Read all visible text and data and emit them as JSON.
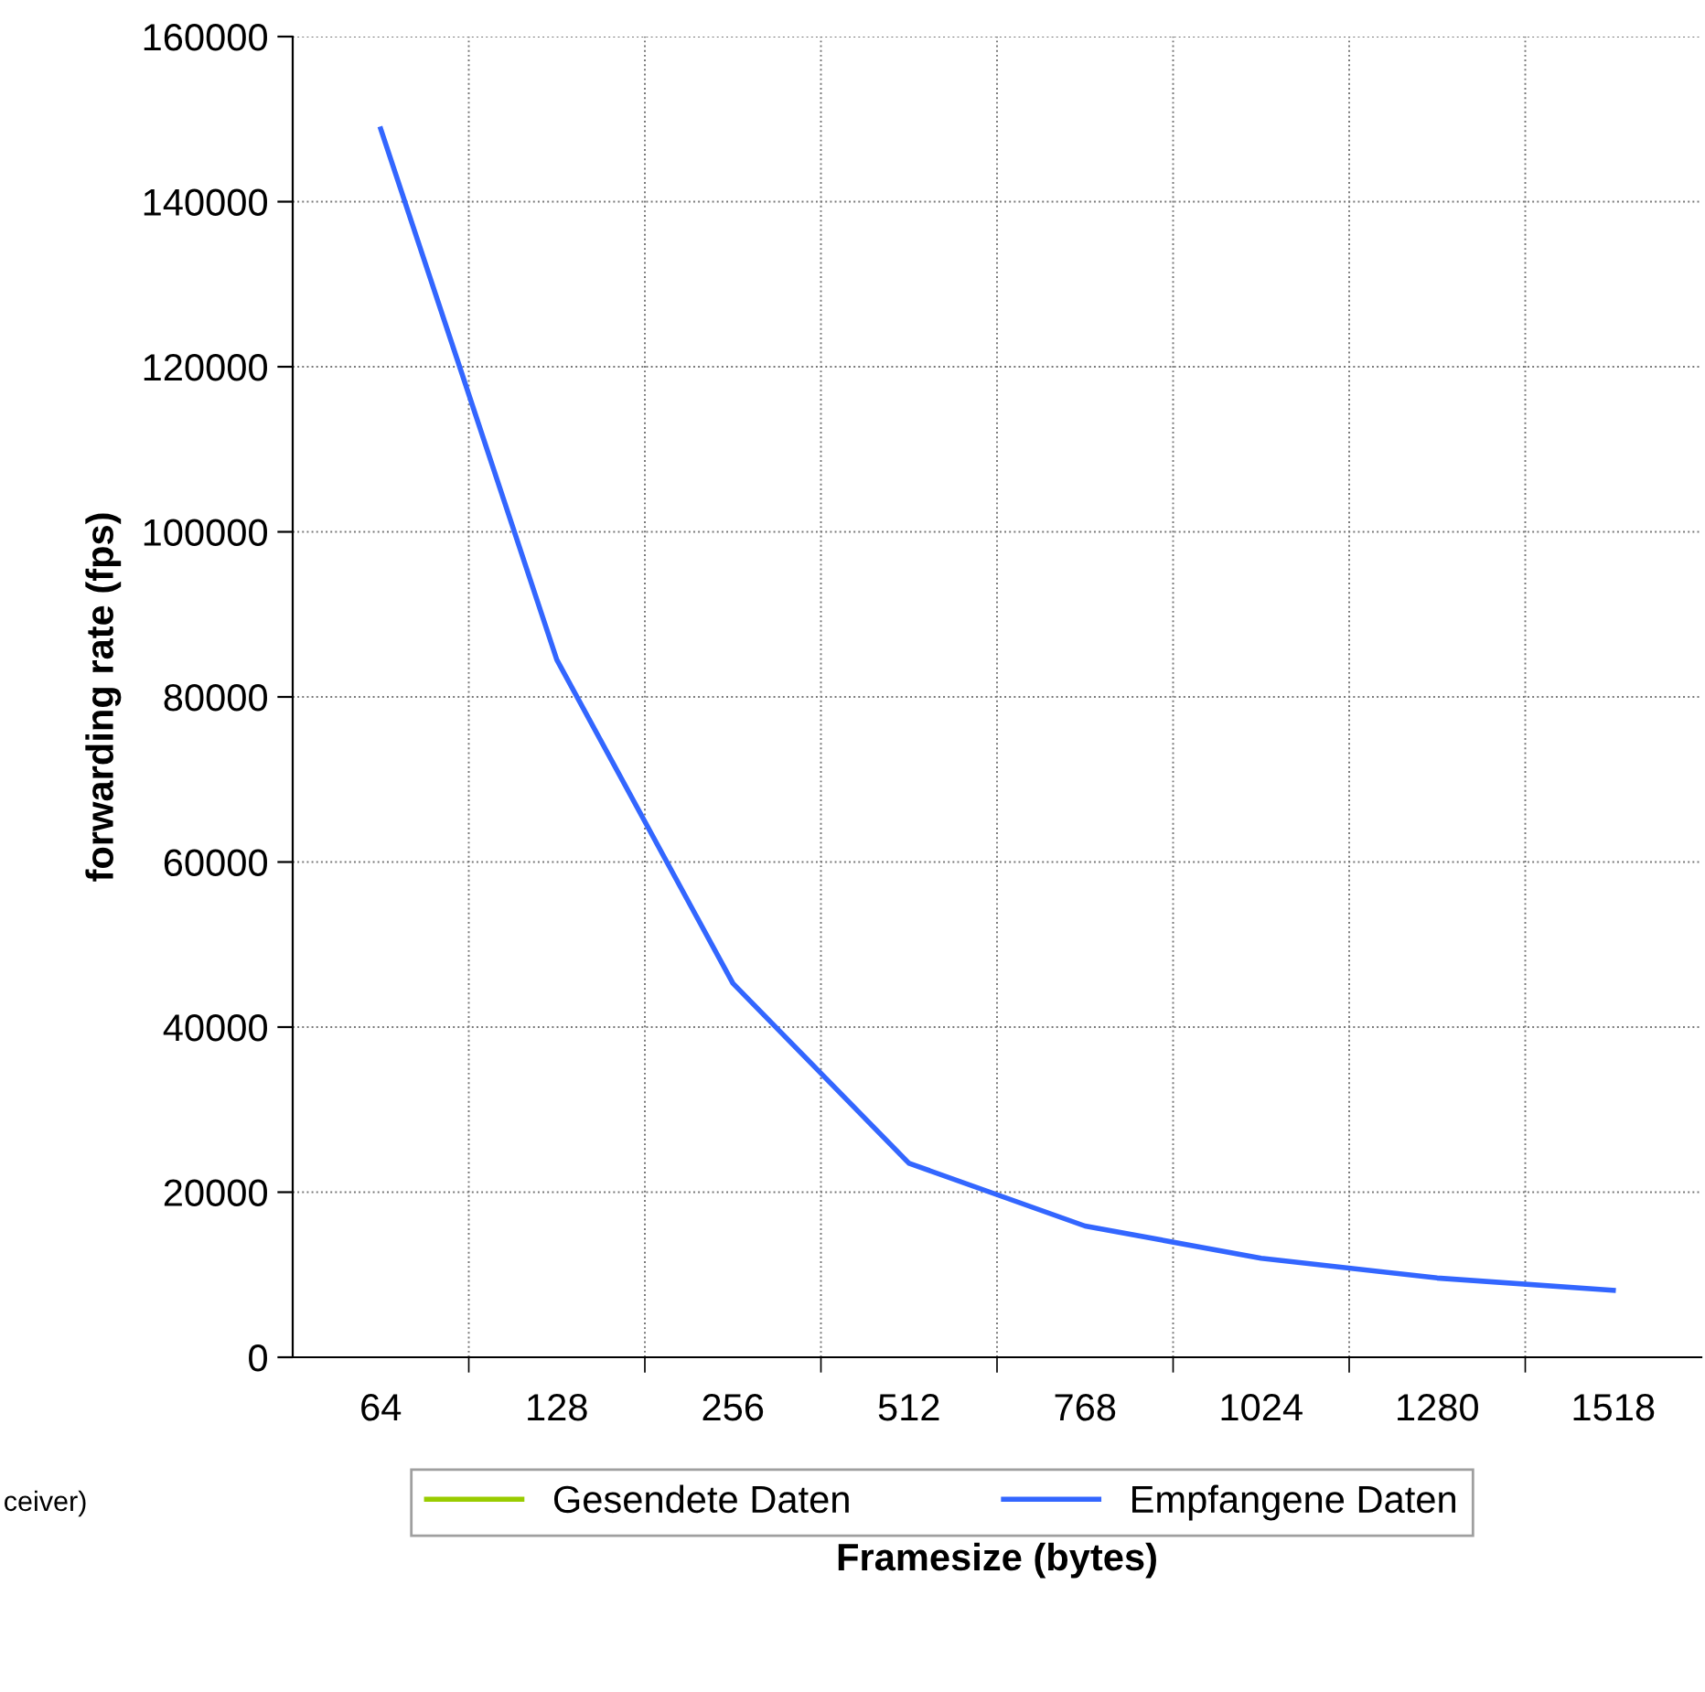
{
  "chart_data": {
    "type": "line",
    "xlabel": "Framesize (bytes)",
    "ylabel": "forwarding rate (fps)",
    "categories": [
      "64",
      "128",
      "256",
      "512",
      "768",
      "1024",
      "1280",
      "1518"
    ],
    "series": [
      {
        "name": "Gesendete Daten",
        "color": "#99cc00",
        "values": [
          null,
          null,
          null,
          null,
          null,
          null,
          null,
          null
        ]
      },
      {
        "name": "Empfangene Daten",
        "color": "#3366ff",
        "values": [
          148800,
          84500,
          45300,
          23500,
          15900,
          12000,
          9600,
          8100
        ]
      }
    ],
    "ylim": [
      0,
      160000
    ],
    "yticks": [
      0,
      20000,
      40000,
      60000,
      80000,
      100000,
      120000,
      140000,
      160000
    ],
    "grid": true,
    "legend": "bottom",
    "marker": "none",
    "line_style": "solid",
    "annotations": [
      "ceiver)"
    ]
  }
}
